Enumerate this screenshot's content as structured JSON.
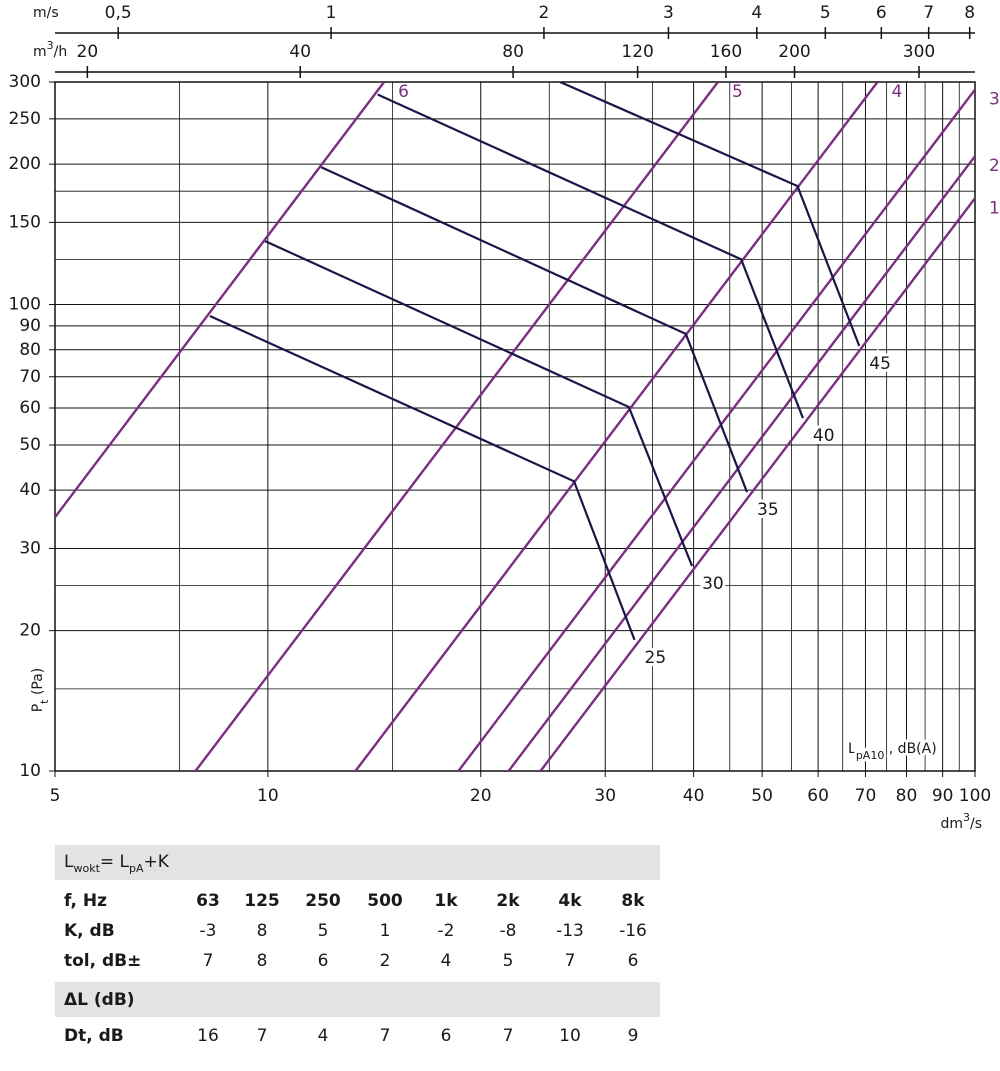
{
  "chart_data": {
    "type": "line",
    "xscale": "log",
    "yscale": "log",
    "xlim": [
      5,
      100
    ],
    "ylim": [
      10,
      300
    ],
    "xticks": [
      5,
      10,
      20,
      30,
      40,
      50,
      60,
      70,
      80,
      90,
      100
    ],
    "xminor": [
      7.5,
      15,
      25,
      35,
      45,
      55,
      65,
      75,
      85,
      95
    ],
    "yticks": [
      10,
      20,
      30,
      40,
      50,
      60,
      70,
      80,
      90,
      100,
      150,
      200,
      250,
      300
    ],
    "yminor": [
      15,
      25,
      125,
      175
    ],
    "grid": true,
    "xlabel": [
      "dm",
      "3",
      "/s"
    ],
    "ylabel": [
      "P",
      "t",
      " (Pa)"
    ],
    "top_axes": [
      {
        "label": [
          "m/s"
        ],
        "lim": [
          0.407,
          8.14
        ],
        "ticks": [
          {
            "value": 0.5,
            "label": "0,5"
          },
          1,
          2,
          3,
          4,
          5,
          6,
          7,
          8
        ]
      },
      {
        "label": [
          "m",
          "3",
          "/h"
        ],
        "lim": [
          18,
          360
        ],
        "ticks": [
          20,
          40,
          80,
          120,
          160,
          200,
          300
        ]
      }
    ],
    "annotation": [
      "L",
      "pA10",
      " , dB(A)"
    ],
    "system_lines": [
      {
        "name": "1",
        "color": "#7b2d80",
        "x": [
          24.3,
          100
        ],
        "values": [
          10,
          169
        ]
      },
      {
        "name": "2",
        "color": "#7b2d80",
        "x": [
          21.9,
          100
        ],
        "values": [
          10,
          208
        ]
      },
      {
        "name": "3",
        "color": "#7b2d80",
        "x": [
          18.6,
          100
        ],
        "values": [
          10,
          289
        ]
      },
      {
        "name": "4",
        "color": "#7b2d80",
        "x": [
          13.3,
          72.8
        ],
        "values": [
          10,
          300
        ]
      },
      {
        "name": "5",
        "color": "#7b2d80",
        "x": [
          7.9,
          43.3
        ],
        "values": [
          10,
          300
        ]
      },
      {
        "name": "6",
        "color": "#7b2d80",
        "x": [
          5,
          14.6
        ],
        "values": [
          35,
          300
        ]
      }
    ],
    "series": [
      {
        "name": "25",
        "color": "#1c1548",
        "x": [
          8.28,
          27.1,
          33.0
        ],
        "values": [
          94.5,
          41.8,
          19.1
        ]
      },
      {
        "name": "30",
        "color": "#1c1548",
        "x": [
          9.91,
          32.4,
          39.8
        ],
        "values": [
          136.8,
          60.3,
          27.5
        ]
      },
      {
        "name": "35",
        "color": "#1c1548",
        "x": [
          11.9,
          39.0,
          47.6
        ],
        "values": [
          197,
          86.5,
          39.6
        ]
      },
      {
        "name": "40",
        "color": "#1c1548",
        "x": [
          14.3,
          46.7,
          57.1
        ],
        "values": [
          282,
          125,
          57.1
        ]
      },
      {
        "name": "45",
        "color": "#1c1548",
        "x": [
          25.9,
          56.1,
          68.6
        ],
        "values": [
          300,
          179.5,
          81.5
        ]
      }
    ]
  },
  "table": {
    "formula": [
      "L",
      "wokt",
      "= L",
      "pA",
      "+K"
    ],
    "rows": [
      [
        "f, Hz",
        "63",
        "125",
        "250",
        "500",
        "1k",
        "2k",
        "4k",
        "8k"
      ],
      [
        "K, dB",
        "-3",
        "8",
        "5",
        "1",
        "-2",
        "-8",
        "-13",
        "-16"
      ],
      [
        "tol, dB±",
        "7",
        "8",
        "6",
        "2",
        "4",
        "5",
        "7",
        "6"
      ]
    ],
    "delta_title": "ΔL (dB)",
    "delta_rows": [
      [
        "Dt, dB",
        "16",
        "7",
        "4",
        "7",
        "6",
        "7",
        "10",
        "9"
      ]
    ]
  }
}
